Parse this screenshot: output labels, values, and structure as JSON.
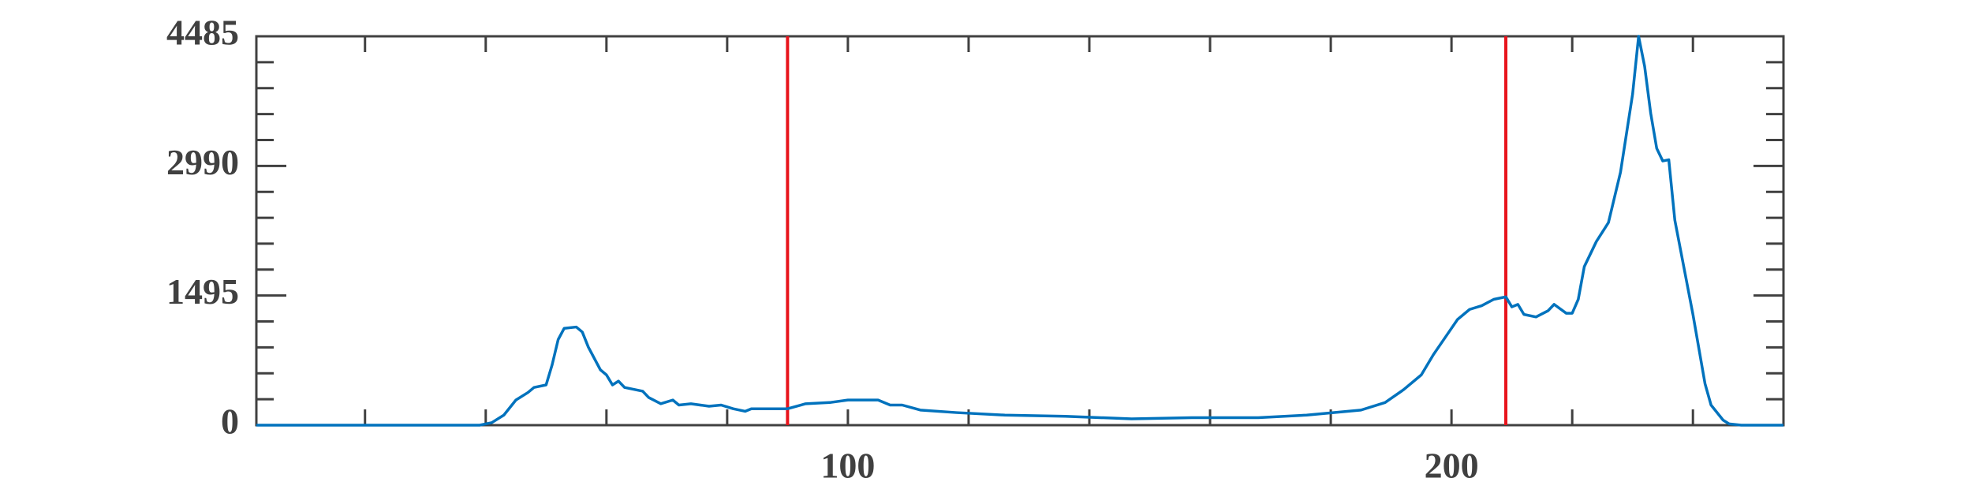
{
  "chart_data": {
    "type": "line",
    "x": [
      2,
      39,
      41,
      43,
      45,
      47,
      48,
      50,
      51,
      52,
      53,
      55,
      56,
      57,
      59,
      60,
      61,
      62,
      63,
      66,
      67,
      69,
      71,
      72,
      74,
      77,
      79,
      81,
      83,
      84,
      90,
      93,
      97,
      100,
      105,
      107,
      109,
      112,
      118,
      126,
      136,
      147,
      157,
      168,
      176,
      185,
      189,
      192,
      195,
      197,
      199,
      201,
      203,
      205,
      207,
      209,
      210,
      211,
      212,
      214,
      216,
      217,
      219,
      220,
      221,
      222,
      224,
      226,
      228,
      230,
      231,
      232,
      233,
      234,
      235,
      236,
      237,
      240,
      242,
      243,
      245,
      246,
      248,
      255
    ],
    "values": [
      0,
      0,
      29,
      116,
      290,
      377,
      435,
      464,
      696,
      987,
      1117,
      1132,
      1074,
      900,
      638,
      580,
      464,
      508,
      435,
      392,
      319,
      247,
      290,
      232,
      247,
      218,
      232,
      189,
      160,
      189,
      189,
      247,
      261,
      290,
      290,
      232,
      232,
      174,
      145,
      116,
      102,
      73,
      87,
      87,
      116,
      174,
      261,
      406,
      580,
      813,
      1016,
      1219,
      1335,
      1378,
      1451,
      1480,
      1364,
      1393,
      1277,
      1248,
      1320,
      1393,
      1291,
      1291,
      1451,
      1828,
      2118,
      2336,
      2917,
      3816,
      4485,
      4137,
      3599,
      3192,
      3047,
      3061,
      2365,
      1277,
      479,
      232,
      58,
      15,
      0,
      0
    ],
    "color": "#0072bd",
    "xlim": [
      2,
      255
    ],
    "xticks": [
      100,
      200
    ],
    "x_tick_marks": [
      20,
      40,
      60,
      80,
      100,
      120,
      140,
      160,
      180,
      200,
      220,
      240
    ],
    "ylim": [
      0,
      4485
    ],
    "yticks": [
      0,
      1495,
      2990,
      4485
    ],
    "y_minor_ticks": [
      299,
      598,
      897,
      1196,
      1794,
      2093,
      2392,
      2691,
      3289,
      3588,
      3887,
      4186
    ],
    "vlines": [
      90,
      209
    ],
    "vline_color": "#e8141c"
  }
}
